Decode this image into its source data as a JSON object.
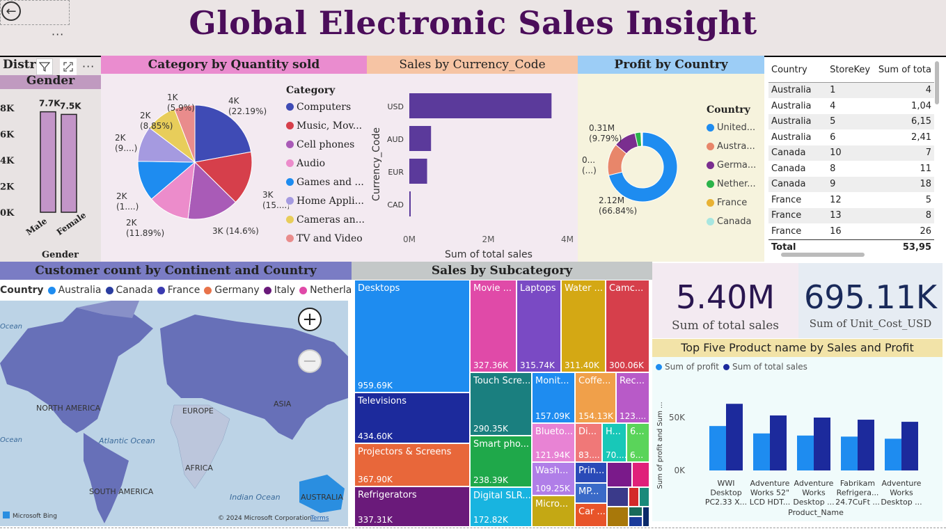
{
  "header": {
    "title": "Global Electronic Sales Insight",
    "menu_dots": "···"
  },
  "gender_panel": {
    "title_partial": "Distr",
    "subtitle": "Gender",
    "y_ticks": [
      "8K",
      "6K",
      "4K",
      "2K",
      "0K"
    ],
    "bars": [
      {
        "label": "Male",
        "value": 7.7,
        "text": "7.7K"
      },
      {
        "label": "Female",
        "value": 7.5,
        "text": "7.5K"
      }
    ],
    "xlabel": "Gender",
    "toolbar": {
      "filter": "filter-icon",
      "focus": "focus-mode-icon",
      "more": "···"
    }
  },
  "category_pie": {
    "title": "Category by Quantity sold",
    "legend_title": "Category",
    "slices": [
      {
        "name": "Computers",
        "label": "4K\n(22.19%)",
        "pct": 22.19,
        "color": "#3f4bb5"
      },
      {
        "name": "Music, Mov...",
        "label": "3K\n(15....)",
        "pct": 15.3,
        "color": "#d63f4b"
      },
      {
        "name": "Cell phones",
        "label": "3K (14.6%)",
        "pct": 14.6,
        "color": "#a95bb7"
      },
      {
        "name": "Audio",
        "label": "2K\n(11.89%)",
        "pct": 11.89,
        "color": "#ec8ccb"
      },
      {
        "name": "Games and ...",
        "label": "2K\n(1....)",
        "pct": 11.5,
        "color": "#1e8cf0"
      },
      {
        "name": "Home Appli...",
        "label": "2K\n(9....)",
        "pct": 10.07,
        "color": "#a59ae0"
      },
      {
        "name": "Cameras an...",
        "label": "2K\n(8.85%)",
        "pct": 8.85,
        "color": "#e8cd5a"
      },
      {
        "name": "TV and Video",
        "label": "1K\n(5.9%)",
        "pct": 5.9,
        "color": "#e98c8c"
      }
    ]
  },
  "currency_chart": {
    "title": "Sales by Currency_Code",
    "ylabel": "Currency_Code",
    "xlabel": "Sum of total sales",
    "x_ticks": [
      "0M",
      "2M",
      "4M"
    ],
    "bars": [
      {
        "code": "USD",
        "value": 3.6
      },
      {
        "code": "AUD",
        "value": 0.55
      },
      {
        "code": "EUR",
        "value": 0.45
      },
      {
        "code": "CAD",
        "value": 0.03
      }
    ],
    "color": "#5b3a9b"
  },
  "profit_donut": {
    "title": "Profit by Country",
    "legend_title": "Country",
    "label_top": "0.31M\n(9.79%)",
    "label_mid": "0...\n(...)",
    "label_bottom": "2.12M\n(66.84%)",
    "segments": [
      {
        "name": "United...",
        "pct": 66.84,
        "color": "#1e8cf0"
      },
      {
        "name": "Austra...",
        "pct": 14.0,
        "color": "#e8866a"
      },
      {
        "name": "Germa...",
        "pct": 9.79,
        "color": "#7a2e8f"
      },
      {
        "name": "Nether...",
        "pct": 2.6,
        "color": "#2bb34a"
      },
      {
        "name": "France",
        "pct": 0.4,
        "color": "#e8b234"
      },
      {
        "name": "Canada",
        "pct": 0.3,
        "color": "#a8e6e0"
      }
    ]
  },
  "store_table": {
    "headers": [
      "Country",
      "StoreKey",
      "Sum of tota"
    ],
    "rows": [
      [
        "Australia",
        "1",
        "4"
      ],
      [
        "Australia",
        "4",
        "1,04"
      ],
      [
        "Australia",
        "5",
        "6,15"
      ],
      [
        "Australia",
        "6",
        "2,41"
      ],
      [
        "Canada",
        "10",
        "7"
      ],
      [
        "Canada",
        "8",
        "11"
      ],
      [
        "Canada",
        "9",
        "18"
      ],
      [
        "France",
        "12",
        "5"
      ],
      [
        "France",
        "13",
        "8"
      ],
      [
        "France",
        "16",
        "26"
      ]
    ],
    "total_label": "Total",
    "total_value": "53,95"
  },
  "map_panel": {
    "title": "Customer count by Continent and Country",
    "legend_title": "Country",
    "legend": [
      {
        "name": "Australia",
        "color": "#1e8cf0"
      },
      {
        "name": "Canada",
        "color": "#2a3da0"
      },
      {
        "name": "France",
        "color": "#3a3ab0"
      },
      {
        "name": "Germany",
        "color": "#e8734a"
      },
      {
        "name": "Italy",
        "color": "#6a1a7a"
      },
      {
        "name": "Netherlands",
        "color": "#e04aa8"
      }
    ],
    "labels": {
      "north_america": "NORTH AMERICA",
      "europe": "EUROPE",
      "asia": "ASIA",
      "africa": "AFRICA",
      "south_america": "SOUTH AMERICA",
      "australia": "AUSTRALIA",
      "atlantic": "Atlantic Ocean",
      "indian": "Indian Ocean",
      "ocean1": "Ocean",
      "ocean2": "Ocean"
    },
    "zoom_in": "+",
    "zoom_out": "−",
    "bing": "Microsoft Bing",
    "copyright": "© 2024 Microsoft Corporation",
    "terms": "Terms"
  },
  "treemap": {
    "title": "Sales by Subcategory",
    "tiles": [
      {
        "name": "Desktops",
        "value": "959.69K",
        "color": "#1e8cf0"
      },
      {
        "name": "Televisions",
        "value": "434.60K",
        "color": "#1c2a9c"
      },
      {
        "name": "Projectors & Screens",
        "value": "367.90K",
        "color": "#e8673a"
      },
      {
        "name": "Refrigerators",
        "value": "337.31K",
        "color": "#6a1a7a"
      },
      {
        "name": "Movie ...",
        "value": "327.36K",
        "color": "#e04aa8"
      },
      {
        "name": "Laptops",
        "value": "315.74K",
        "color": "#7a4ac4"
      },
      {
        "name": "Water ...",
        "value": "311.40K",
        "color": "#d4a814"
      },
      {
        "name": "Camc...",
        "value": "300.06K",
        "color": "#d63f4b"
      },
      {
        "name": "Touch Scre...",
        "value": "290.35K",
        "color": "#1a7f7f"
      },
      {
        "name": "Smart pho...",
        "value": "238.39K",
        "color": "#1fa84a"
      },
      {
        "name": "Digital SLR...",
        "value": "172.82K",
        "color": "#18b4e0"
      },
      {
        "name": "Monit...",
        "value": "157.09K",
        "color": "#1e8cf0"
      },
      {
        "name": "Coffe...",
        "value": "154.13K",
        "color": "#f0a04a"
      },
      {
        "name": "Rec...",
        "value": "123....",
        "color": "#b85ac8"
      },
      {
        "name": "Blueto...",
        "value": "121.94K",
        "color": "#e883d4"
      },
      {
        "name": "Di...",
        "value": "83....",
        "color": "#f07878"
      },
      {
        "name": "H...",
        "value": "70....",
        "color": "#18c8b8"
      },
      {
        "name": "6...",
        "value": "6...",
        "color": "#5ad45a"
      },
      {
        "name": "Wash...",
        "value": "109.25K",
        "color": "#b07ee8"
      },
      {
        "name": "Micro...",
        "value": "",
        "color": "#c4a814"
      },
      {
        "name": "Prin...",
        "value": "",
        "color": "#2a4ab8"
      },
      {
        "name": "MP...",
        "value": "",
        "color": "#3a6ac8"
      },
      {
        "name": "Car ...",
        "value": "",
        "color": "#e8542a"
      }
    ]
  },
  "kpi": {
    "sales_value": "5.40M",
    "sales_label": "Sum of total sales",
    "cost_value": "695.11K",
    "cost_label": "Sum of Unit_Cost_USD"
  },
  "top_products": {
    "title": "Top Five Product name by Sales and Profit",
    "legend": [
      {
        "name": "Sum of profit",
        "color": "#1e8cf0"
      },
      {
        "name": "Sum of total sales",
        "color": "#1c2a9c"
      }
    ],
    "ylabel": "Sum of profit and Sum ...",
    "xlabel": "Product_Name",
    "y_ticks": [
      "50K",
      "0K"
    ],
    "products": [
      {
        "name": "WWI\nDesktop\nPC2.33 X...",
        "profit": 42,
        "sales": 63
      },
      {
        "name": "Adventure\nWorks 52\"\nLCD HDT...",
        "profit": 35,
        "sales": 52
      },
      {
        "name": "Adventure\nWorks\nDesktop ...",
        "profit": 33,
        "sales": 50
      },
      {
        "name": "Fabrikam\nRefrigera...\n24.7CuFt ...",
        "profit": 32,
        "sales": 48
      },
      {
        "name": "Adventure\nWorks\nDesktop ...",
        "profit": 30,
        "sales": 46
      }
    ]
  }
}
